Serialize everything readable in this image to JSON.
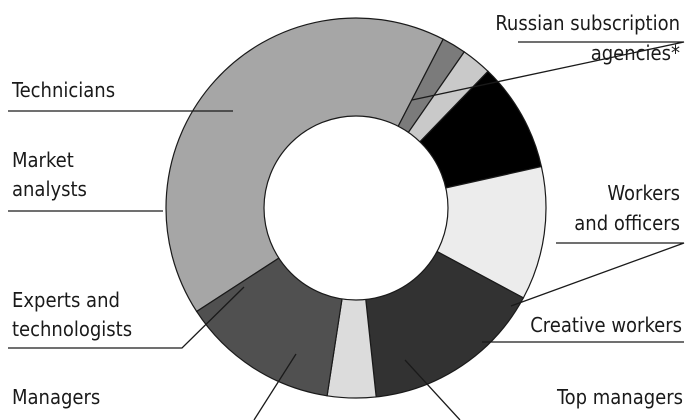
{
  "chart_data": {
    "type": "pie",
    "variant": "donut",
    "title": "",
    "legend": "none",
    "slices": [
      {
        "key": "russian",
        "label_lines": [
          "Russian subscription",
          "agencies*"
        ],
        "value": 40.5,
        "color": "#a6a6a6"
      },
      {
        "key": "workers",
        "label_lines": [
          "Workers",
          "and officers"
        ],
        "value": 2.0,
        "color": "#7b7b7b"
      },
      {
        "key": "creative",
        "label_lines": [
          "Creative workers"
        ],
        "value": 2.5,
        "color": "#c9c9c9"
      },
      {
        "key": "top",
        "label_lines": [
          "Top managers"
        ],
        "value": 9.0,
        "color": "#000000"
      },
      {
        "key": "managers",
        "label_lines": [
          "Managers"
        ],
        "value": 11.0,
        "color": "#ececec"
      },
      {
        "key": "experts",
        "label_lines": [
          "Experts and",
          "technologists"
        ],
        "value": 15.0,
        "color": "#323232"
      },
      {
        "key": "market",
        "label_lines": [
          "Market",
          "analysts"
        ],
        "value": 4.0,
        "color": "#dcdcdc"
      },
      {
        "key": "technicians",
        "label_lines": [
          "Technicians"
        ],
        "value": 13.0,
        "color": "#505050"
      }
    ]
  }
}
